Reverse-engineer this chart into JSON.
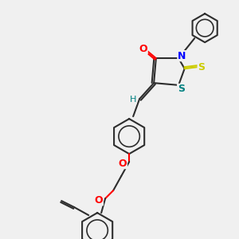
{
  "background_color": "#f0f0f0",
  "bond_color": "#2d2d2d",
  "atom_colors": {
    "O": "#ff0000",
    "N": "#0000ff",
    "S_thioxo": "#cccc00",
    "S_ring": "#008080",
    "H": "#008080",
    "C": "#2d2d2d"
  },
  "figsize": [
    3.0,
    3.0
  ],
  "dpi": 100
}
